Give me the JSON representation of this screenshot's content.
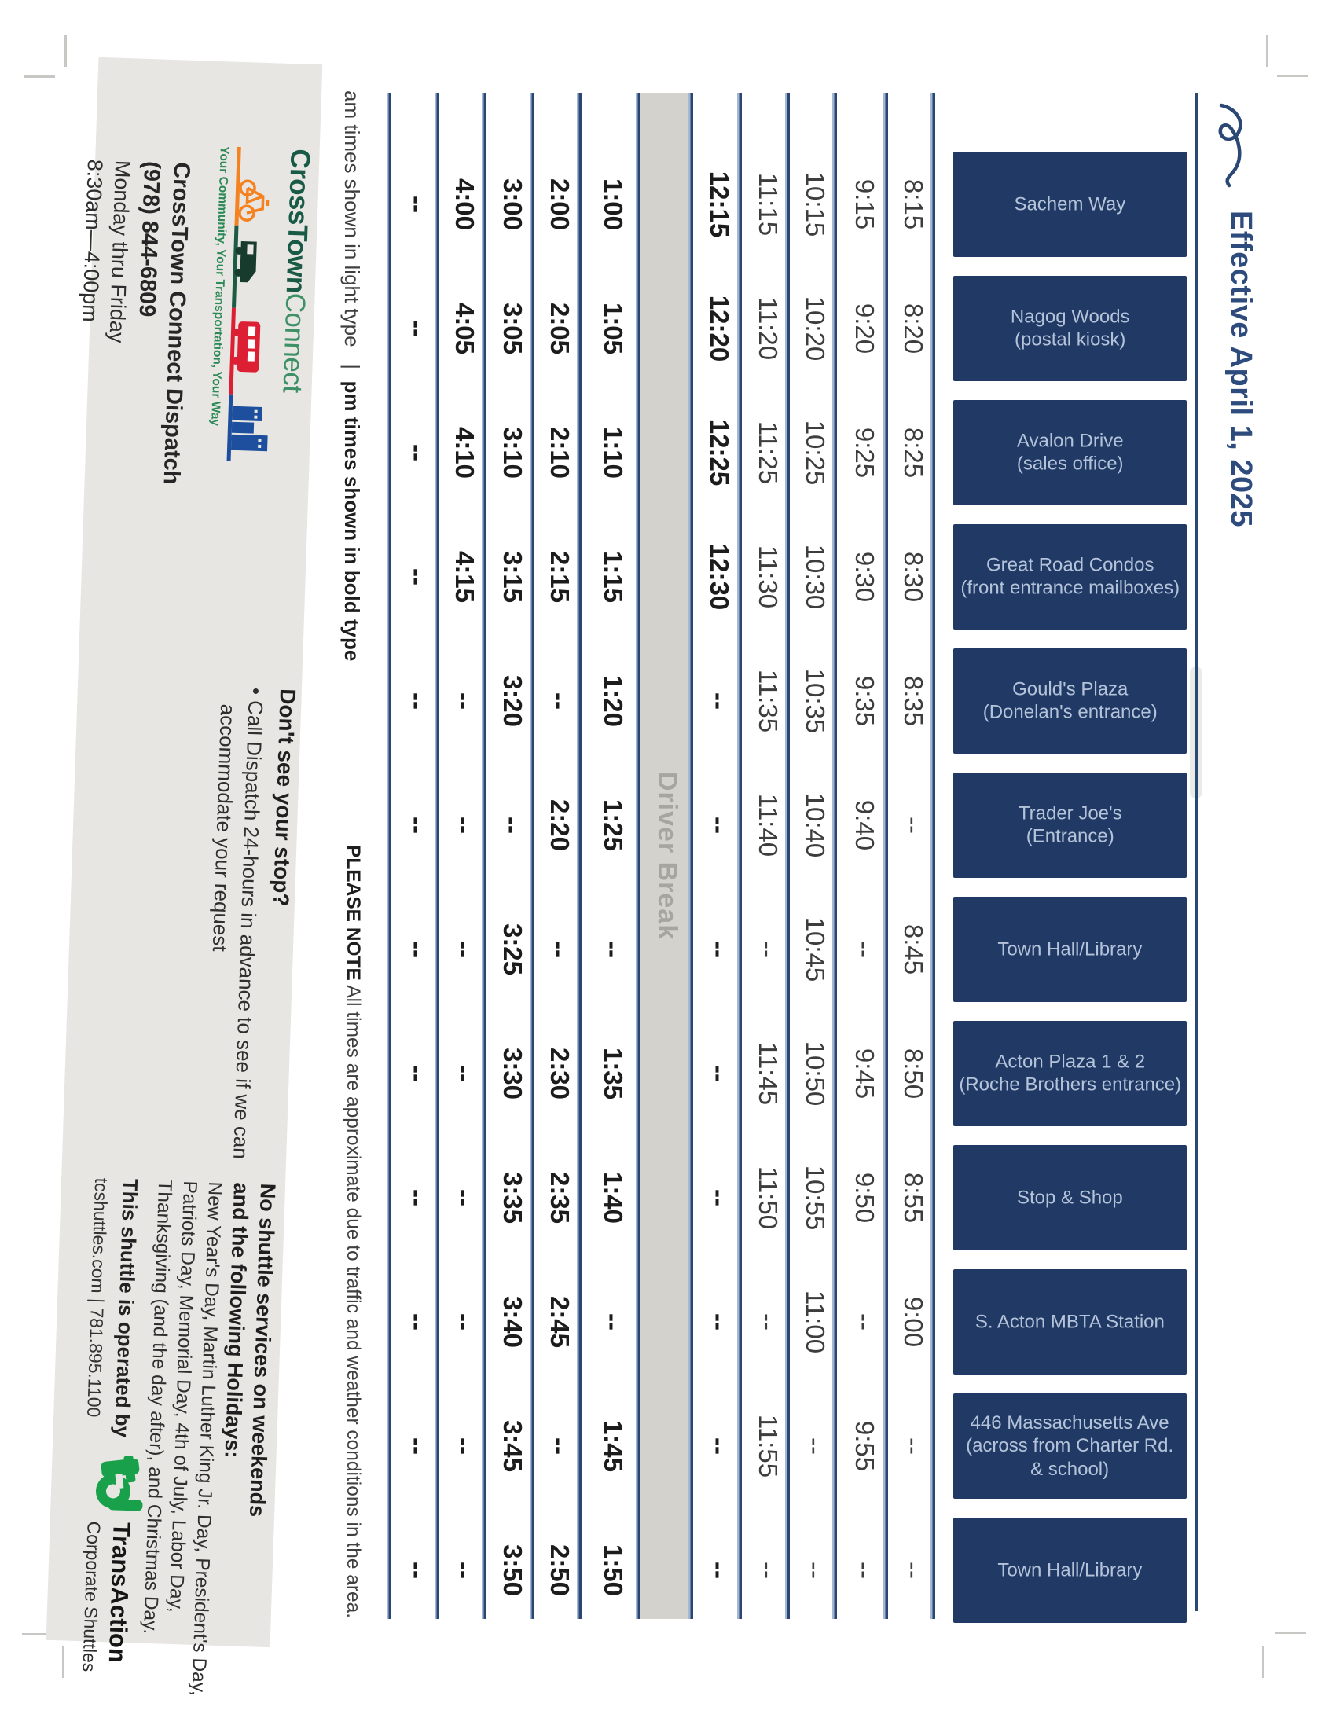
{
  "title": {
    "effective": "Effective April 1, 2025"
  },
  "schedule": {
    "driver_break_label": "Driver Break",
    "pm_start_index": 4,
    "stops": [
      {
        "lines": [
          "Sachem Way"
        ],
        "times": [
          "8:15",
          "9:15",
          "10:15",
          "11:15",
          "12:15",
          "1:00",
          "2:00",
          "3:00",
          "4:00",
          "--"
        ]
      },
      {
        "lines": [
          "Nagog Woods",
          "(postal kiosk)"
        ],
        "times": [
          "8:20",
          "9:20",
          "10:20",
          "11:20",
          "12:20",
          "1:05",
          "2:05",
          "3:05",
          "4:05",
          "--"
        ]
      },
      {
        "lines": [
          "Avalon Drive",
          "(sales office)"
        ],
        "times": [
          "8:25",
          "9:25",
          "10:25",
          "11:25",
          "12:25",
          "1:10",
          "2:10",
          "3:10",
          "4:10",
          "--"
        ]
      },
      {
        "lines": [
          "Great Road Condos",
          "(front entrance mailboxes)"
        ],
        "times": [
          "8:30",
          "9:30",
          "10:30",
          "11:30",
          "12:30",
          "1:15",
          "2:15",
          "3:15",
          "4:15",
          "--"
        ]
      },
      {
        "lines": [
          "Gould's Plaza",
          "(Donelan's entrance)"
        ],
        "times": [
          "8:35",
          "9:35",
          "10:35",
          "11:35",
          "--",
          "1:20",
          "--",
          "3:20",
          "--",
          "--"
        ]
      },
      {
        "lines": [
          "Trader Joe's",
          "(Entrance)"
        ],
        "times": [
          "--",
          "9:40",
          "10:40",
          "11:40",
          "--",
          "1:25",
          "2:20",
          "--",
          "--",
          "--"
        ]
      },
      {
        "lines": [
          "Town Hall/Library"
        ],
        "times": [
          "8:45",
          "--",
          "10:45",
          "--",
          "--",
          "--",
          "--",
          "3:25",
          "--",
          "--"
        ]
      },
      {
        "lines": [
          "Acton Plaza 1 & 2",
          "(Roche Brothers entrance)"
        ],
        "times": [
          "8:50",
          "9:45",
          "10:50",
          "11:45",
          "--",
          "1:35",
          "2:30",
          "3:30",
          "--",
          "--"
        ]
      },
      {
        "lines": [
          "Stop & Shop"
        ],
        "times": [
          "8:55",
          "9:50",
          "10:55",
          "11:50",
          "--",
          "1:40",
          "2:35",
          "3:35",
          "--",
          "--"
        ]
      },
      {
        "lines": [
          "S. Acton MBTA Station"
        ],
        "times": [
          "9:00",
          "--",
          "11:00",
          "--",
          "--",
          "--",
          "2:45",
          "3:40",
          "--",
          "--"
        ]
      },
      {
        "lines": [
          "446 Massachusetts Ave",
          "(across from Charter Rd.",
          "& school)"
        ],
        "times": [
          "--",
          "9:55",
          "--",
          "11:55",
          "--",
          "1:45",
          "--",
          "3:45",
          "--",
          "--"
        ]
      },
      {
        "lines": [
          "Town Hall/Library"
        ],
        "times": [
          "--",
          "--",
          "--",
          "--",
          "--",
          "1:50",
          "2:50",
          "3:50",
          "--",
          "--"
        ]
      }
    ]
  },
  "footer": {
    "am_note": "am times shown in light type",
    "divider": "|",
    "pm_note": "pm times shown in bold type",
    "please_note_label": "PLEASE NOTE",
    "please_note_text": " All times are approximate due to traffic and weather conditions in the area."
  },
  "info_band": {
    "logo": {
      "wordmark_1": "CrossTown",
      "wordmark_2": "Connect",
      "tagline": "Your Community, Your Transportation, Your Way"
    },
    "dispatch": {
      "line1": "CrossTown Connect Dispatch",
      "phone": "(978) 844-6809",
      "line3": "Monday thru Friday",
      "line4": "8:30am—4:00pm"
    },
    "stop_request": {
      "title": "Don't see your stop?",
      "bullet": "• Call Dispatch 24-hours in advance to see if we can",
      "cont": "accommodate your request"
    },
    "holidays": {
      "title_1": "No shuttle services on weekends",
      "title_2": "and the following Holidays:",
      "lines": [
        "New Year's Day, Martin Luther King Jr. Day, President's Day,",
        "Patriots Day, Memorial Day, 4th of July, Labor Day,",
        "Thanksgiving (and the day after), and Christmas Day."
      ]
    },
    "operator": {
      "line1": "This shuttle is operated by",
      "line2": "tcshuttles.com  |  781.895.1100",
      "brand": "TransAction",
      "brand_sub": "Corporate Shuttles"
    }
  },
  "colors": {
    "navy_box": "#203a65",
    "navy_line": "#2a4673",
    "band_grey": "#e8e6e2",
    "break_grey": "#d3d2cd",
    "logo_green_dark": "#195a47",
    "logo_green_light": "#3e9166",
    "transaction_green": "#18a04b",
    "bar_orange": "#f58220",
    "bar_green": "#1c5c45",
    "bar_red": "#dd1f33",
    "bar_blue": "#1d4f9e"
  }
}
